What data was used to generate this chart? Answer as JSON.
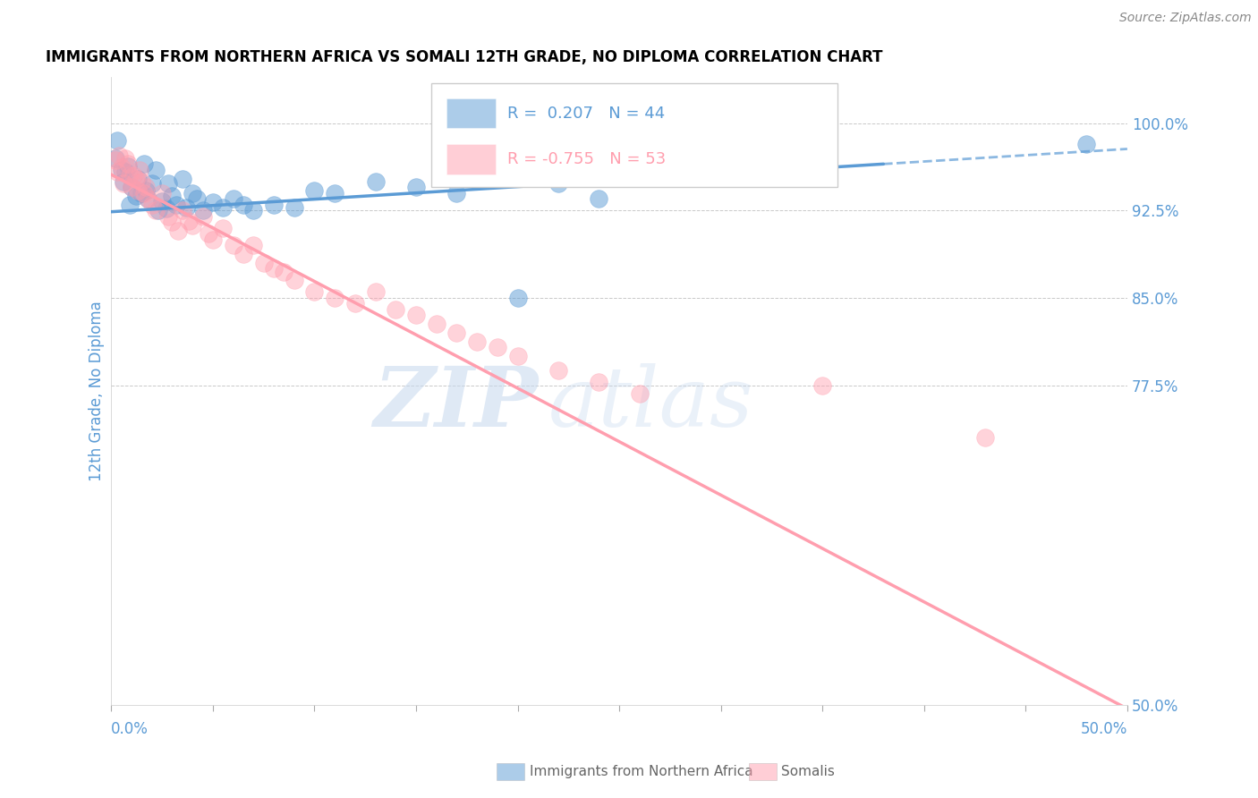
{
  "title": "IMMIGRANTS FROM NORTHERN AFRICA VS SOMALI 12TH GRADE, NO DIPLOMA CORRELATION CHART",
  "source": "Source: ZipAtlas.com",
  "ylabel": "12th Grade, No Diploma",
  "xlim": [
    0.0,
    0.5
  ],
  "ylim": [
    0.5,
    1.04
  ],
  "R_blue": 0.207,
  "N_blue": 44,
  "R_pink": -0.755,
  "N_pink": 53,
  "blue_color": "#5B9BD5",
  "pink_color": "#FF9EAE",
  "legend_blue": "Immigrants from Northern Africa",
  "legend_pink": "Somalis",
  "watermark_zip": "ZIP",
  "watermark_atlas": "atlas",
  "gridline_color": "#BBBBBB",
  "ytick_positions": [
    0.5,
    0.775,
    0.85,
    0.925,
    1.0
  ],
  "ytick_labels": [
    "50.0%",
    "77.5%",
    "85.0%",
    "92.5%",
    "100.0%"
  ],
  "blue_line": {
    "x0": 0.0,
    "y0": 0.924,
    "x1": 0.5,
    "y1": 0.978,
    "dashed_from": 0.38
  },
  "pink_line": {
    "x0": 0.0,
    "y0": 0.956,
    "x1": 0.5,
    "y1": 0.497
  },
  "blue_scatter": [
    [
      0.002,
      0.97
    ],
    [
      0.003,
      0.985
    ],
    [
      0.005,
      0.96
    ],
    [
      0.006,
      0.95
    ],
    [
      0.007,
      0.958
    ],
    [
      0.008,
      0.963
    ],
    [
      0.009,
      0.93
    ],
    [
      0.01,
      0.945
    ],
    [
      0.012,
      0.938
    ],
    [
      0.013,
      0.952
    ],
    [
      0.015,
      0.94
    ],
    [
      0.016,
      0.965
    ],
    [
      0.017,
      0.942
    ],
    [
      0.018,
      0.935
    ],
    [
      0.02,
      0.948
    ],
    [
      0.022,
      0.96
    ],
    [
      0.023,
      0.925
    ],
    [
      0.025,
      0.933
    ],
    [
      0.027,
      0.927
    ],
    [
      0.028,
      0.948
    ],
    [
      0.03,
      0.938
    ],
    [
      0.032,
      0.93
    ],
    [
      0.035,
      0.952
    ],
    [
      0.037,
      0.928
    ],
    [
      0.04,
      0.94
    ],
    [
      0.042,
      0.935
    ],
    [
      0.045,
      0.925
    ],
    [
      0.05,
      0.932
    ],
    [
      0.055,
      0.928
    ],
    [
      0.06,
      0.935
    ],
    [
      0.065,
      0.93
    ],
    [
      0.07,
      0.925
    ],
    [
      0.08,
      0.93
    ],
    [
      0.09,
      0.928
    ],
    [
      0.1,
      0.942
    ],
    [
      0.11,
      0.94
    ],
    [
      0.13,
      0.95
    ],
    [
      0.15,
      0.945
    ],
    [
      0.17,
      0.94
    ],
    [
      0.2,
      0.85
    ],
    [
      0.22,
      0.948
    ],
    [
      0.24,
      0.935
    ],
    [
      0.34,
      0.957
    ],
    [
      0.48,
      0.982
    ]
  ],
  "pink_scatter": [
    [
      0.002,
      0.968
    ],
    [
      0.003,
      0.958
    ],
    [
      0.004,
      0.972
    ],
    [
      0.005,
      0.962
    ],
    [
      0.006,
      0.948
    ],
    [
      0.007,
      0.97
    ],
    [
      0.008,
      0.965
    ],
    [
      0.009,
      0.955
    ],
    [
      0.01,
      0.945
    ],
    [
      0.011,
      0.955
    ],
    [
      0.012,
      0.952
    ],
    [
      0.013,
      0.942
    ],
    [
      0.014,
      0.96
    ],
    [
      0.015,
      0.95
    ],
    [
      0.016,
      0.94
    ],
    [
      0.017,
      0.945
    ],
    [
      0.018,
      0.935
    ],
    [
      0.02,
      0.93
    ],
    [
      0.022,
      0.925
    ],
    [
      0.025,
      0.94
    ],
    [
      0.028,
      0.92
    ],
    [
      0.03,
      0.915
    ],
    [
      0.033,
      0.908
    ],
    [
      0.035,
      0.925
    ],
    [
      0.038,
      0.916
    ],
    [
      0.04,
      0.912
    ],
    [
      0.045,
      0.92
    ],
    [
      0.048,
      0.905
    ],
    [
      0.05,
      0.9
    ],
    [
      0.055,
      0.91
    ],
    [
      0.06,
      0.895
    ],
    [
      0.065,
      0.888
    ],
    [
      0.07,
      0.895
    ],
    [
      0.075,
      0.88
    ],
    [
      0.08,
      0.875
    ],
    [
      0.085,
      0.872
    ],
    [
      0.09,
      0.865
    ],
    [
      0.1,
      0.855
    ],
    [
      0.11,
      0.85
    ],
    [
      0.12,
      0.845
    ],
    [
      0.13,
      0.855
    ],
    [
      0.14,
      0.84
    ],
    [
      0.15,
      0.835
    ],
    [
      0.16,
      0.828
    ],
    [
      0.17,
      0.82
    ],
    [
      0.18,
      0.812
    ],
    [
      0.19,
      0.808
    ],
    [
      0.2,
      0.8
    ],
    [
      0.22,
      0.788
    ],
    [
      0.24,
      0.778
    ],
    [
      0.26,
      0.768
    ],
    [
      0.35,
      0.775
    ],
    [
      0.43,
      0.73
    ]
  ]
}
